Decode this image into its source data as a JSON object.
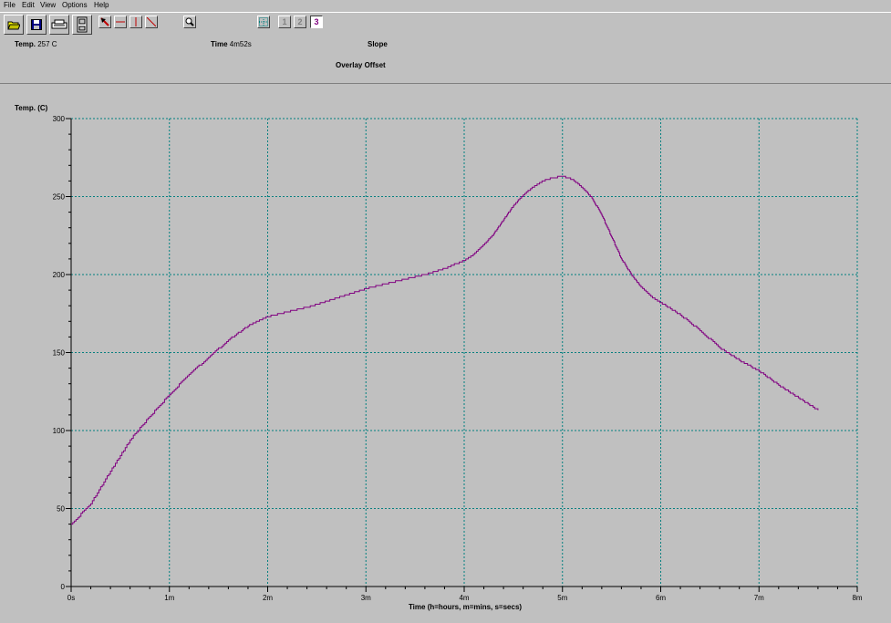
{
  "menu": [
    "File",
    "Edit",
    "View",
    "Options",
    "Help"
  ],
  "toolbar": {
    "icons": [
      "open-folder-icon",
      "save-disk-icon",
      "printer-icon",
      "device-icon",
      "cursor-icon",
      "horizontal-line-icon",
      "vertical-line-icon",
      "slope-line-icon",
      "zoom-icon",
      "grid-icon"
    ],
    "numbered": [
      "1",
      "2",
      "3"
    ],
    "active_number": "3"
  },
  "status": {
    "temp_label": "Temp.",
    "temp_value": "257 C",
    "time_label": "Time",
    "time_value": "4m52s",
    "slope_label": "Slope",
    "overlay_label": "Overlay Offset"
  },
  "chart_data": {
    "type": "line",
    "ylabel": "Temp. (C)",
    "xlabel": "Time (h=hours, m=mins, s=secs)",
    "ylim": [
      0,
      300
    ],
    "xlim": [
      0,
      8
    ],
    "x_unit": "minutes",
    "xtick_labels": [
      "0s",
      "1m",
      "2m",
      "3m",
      "4m",
      "5m",
      "6m",
      "7m",
      "8m"
    ],
    "ytick_labels": [
      "0",
      "50",
      "100",
      "150",
      "200",
      "250",
      "300"
    ],
    "grid": true,
    "line_color": "#800080",
    "grid_color": "#008080",
    "series": [
      {
        "x": [
          0,
          0.2,
          0.4,
          0.6,
          0.8,
          1.0,
          1.2,
          1.4,
          1.6,
          1.8,
          2.0,
          2.2,
          2.4,
          2.6,
          2.8,
          3.0,
          3.2,
          3.4,
          3.6,
          3.8,
          4.0,
          4.1,
          4.2,
          4.3,
          4.4,
          4.5,
          4.6,
          4.7,
          4.8,
          4.9,
          5.0,
          5.1,
          5.2,
          5.3,
          5.4,
          5.5,
          5.6,
          5.7,
          5.8,
          5.9,
          6.0,
          6.2,
          6.4,
          6.6,
          6.8,
          7.0,
          7.2,
          7.4,
          7.6
        ],
        "y": [
          40,
          53,
          74,
          94,
          109,
          123,
          136,
          147,
          158,
          167,
          173,
          176,
          179,
          183,
          187,
          191,
          194,
          197,
          200,
          204,
          209,
          213,
          219,
          226,
          235,
          244,
          251,
          256,
          260,
          262,
          263,
          261,
          256,
          249,
          238,
          224,
          210,
          200,
          192,
          186,
          182,
          174,
          164,
          153,
          145,
          138,
          129,
          121,
          113
        ]
      }
    ]
  }
}
